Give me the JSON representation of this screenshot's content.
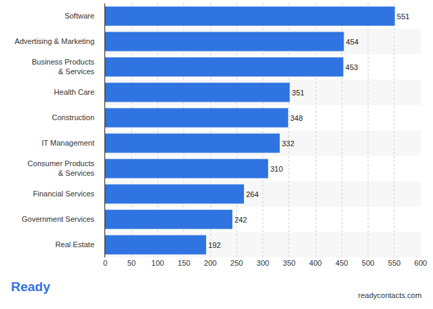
{
  "chart_data": {
    "type": "bar",
    "orientation": "horizontal",
    "categories": [
      "Software",
      "Advertising & Marketing",
      "Business Products & Services",
      "Health Care",
      "Construction",
      "IT Management",
      "Consumer Products & Services",
      "Financial Services",
      "Government Services",
      "Real Estate"
    ],
    "values": [
      551,
      454,
      453,
      351,
      348,
      332,
      310,
      264,
      242,
      192
    ],
    "color": "#2f74e0",
    "xlim": [
      0,
      600
    ],
    "xticks": [
      0,
      50,
      100,
      150,
      200,
      250,
      300,
      350,
      400,
      450,
      500,
      550,
      600
    ],
    "grid": true,
    "data_labels": true,
    "annotations": [
      "Ready",
      "readycontacts.com"
    ]
  }
}
